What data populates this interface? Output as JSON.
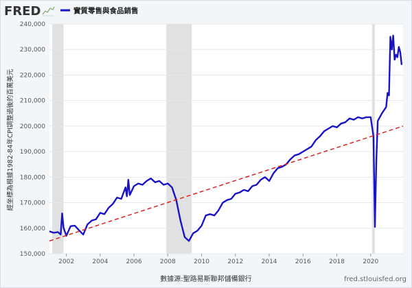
{
  "brand": {
    "name": "FRED",
    "icon": "fred-sparkline-icon"
  },
  "chart_data": {
    "type": "line",
    "title": "",
    "legend": {
      "placement": "top-left"
    },
    "series": [
      {
        "name": "實質零售與食品銷售",
        "color": "#1a14c8",
        "x": [
          "2001-01",
          "2001-04",
          "2001-07",
          "2001-09",
          "2001-10",
          "2001-11",
          "2002-01",
          "2002-04",
          "2002-07",
          "2002-10",
          "2003-01",
          "2003-04",
          "2003-07",
          "2003-10",
          "2004-01",
          "2004-04",
          "2004-07",
          "2004-10",
          "2005-01",
          "2005-04",
          "2005-07",
          "2005-08",
          "2005-09",
          "2005-10",
          "2006-01",
          "2006-04",
          "2006-07",
          "2006-10",
          "2007-01",
          "2007-04",
          "2007-07",
          "2007-10",
          "2008-01",
          "2008-04",
          "2008-07",
          "2008-10",
          "2009-01",
          "2009-04",
          "2009-07",
          "2009-10",
          "2010-01",
          "2010-04",
          "2010-07",
          "2010-10",
          "2011-01",
          "2011-04",
          "2011-07",
          "2011-10",
          "2012-01",
          "2012-04",
          "2012-07",
          "2012-10",
          "2013-01",
          "2013-04",
          "2013-07",
          "2013-10",
          "2014-01",
          "2014-04",
          "2014-07",
          "2014-10",
          "2015-01",
          "2015-04",
          "2015-07",
          "2015-10",
          "2016-01",
          "2016-04",
          "2016-07",
          "2016-10",
          "2017-01",
          "2017-04",
          "2017-07",
          "2017-10",
          "2018-01",
          "2018-04",
          "2018-07",
          "2018-10",
          "2019-01",
          "2019-04",
          "2019-07",
          "2019-10",
          "2020-01",
          "2020-03",
          "2020-04",
          "2020-05",
          "2020-06",
          "2020-09",
          "2020-12",
          "2021-01",
          "2021-02",
          "2021-03",
          "2021-04",
          "2021-05",
          "2021-06",
          "2021-07",
          "2021-08",
          "2021-09",
          "2021-10",
          "2021-11"
        ],
        "y": [
          158800,
          158200,
          158500,
          157500,
          165800,
          160200,
          157000,
          160800,
          161000,
          159200,
          157500,
          161500,
          163000,
          163500,
          166000,
          165500,
          168000,
          169500,
          172000,
          171500,
          176000,
          172500,
          179000,
          173000,
          176500,
          177500,
          177000,
          178500,
          179500,
          178000,
          178500,
          177000,
          177500,
          176000,
          171000,
          163000,
          156500,
          155000,
          158000,
          159000,
          161000,
          165000,
          165500,
          165000,
          167000,
          170000,
          171000,
          171500,
          173500,
          174000,
          175000,
          174500,
          176500,
          177000,
          179000,
          180000,
          178500,
          181500,
          183500,
          184000,
          185000,
          187000,
          188500,
          189000,
          190000,
          191000,
          192000,
          194500,
          196000,
          198000,
          199000,
          200000,
          199500,
          201000,
          201500,
          203000,
          202500,
          203500,
          203000,
          203500,
          203500,
          196000,
          160500,
          186000,
          202000,
          205000,
          207500,
          213000,
          212000,
          235000,
          230000,
          235500,
          226000,
          228000,
          227000,
          231000,
          229000,
          224000
        ]
      },
      {
        "name": "",
        "style": "dashed",
        "color": "#dd2222",
        "x": [
          "2001-01",
          "2021-12"
        ],
        "y": [
          155000,
          200000
        ]
      }
    ],
    "xlim": [
      "2001-01",
      "2021-12"
    ],
    "ylim": [
      150000,
      240000
    ],
    "x_ticks": [
      "2002",
      "2004",
      "2006",
      "2008",
      "2010",
      "2012",
      "2014",
      "2016",
      "2018",
      "2020"
    ],
    "y_ticks": [
      "150,000",
      "160,000",
      "170,000",
      "180,000",
      "190,000",
      "200,000",
      "210,000",
      "220,000",
      "230,000",
      "240,000"
    ],
    "ylabel": "經坐標為根據1982-84年CPI調整過後的百萬美元",
    "xlabel": "",
    "grid": true,
    "recessions": [
      {
        "start": "2001-03",
        "end": "2001-11"
      },
      {
        "start": "2007-12",
        "end": "2009-06"
      },
      {
        "start": "2020-02",
        "end": "2020-04"
      }
    ]
  },
  "footer": {
    "source": "數據源:聖路易斯聯邦儲備銀行",
    "url": "fred.stlouisfed.org"
  }
}
